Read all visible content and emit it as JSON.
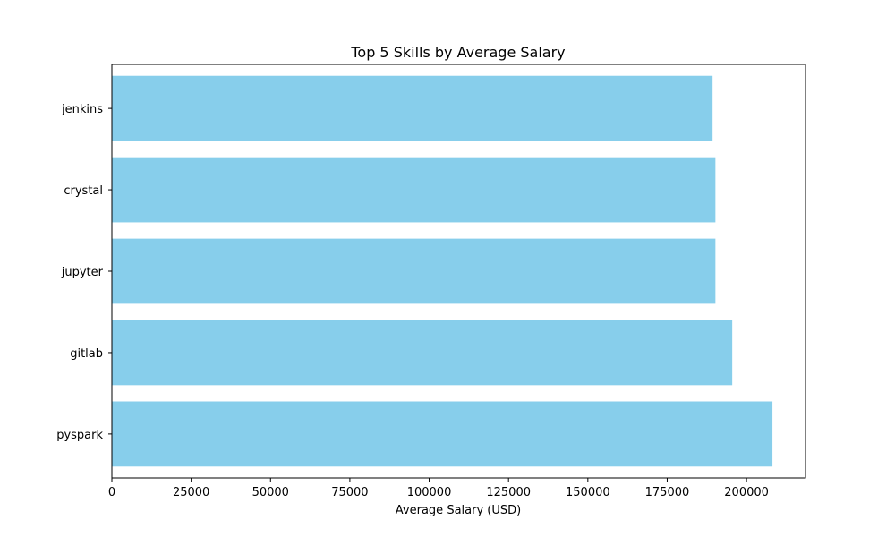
{
  "chart_data": {
    "type": "bar",
    "orientation": "horizontal",
    "title": "Top 5 Skills by Average Salary",
    "xlabel": "Average Salary (USD)",
    "ylabel": "",
    "categories": [
      "pyspark",
      "gitlab",
      "jupyter",
      "crystal",
      "jenkins"
    ],
    "values": [
      208172,
      195500,
      190200,
      190200,
      189300
    ],
    "xlim": [
      0,
      218586
    ],
    "xticks": [
      0,
      25000,
      50000,
      75000,
      100000,
      125000,
      150000,
      175000,
      200000
    ],
    "xtick_labels": [
      "0",
      "25000",
      "50000",
      "75000",
      "100000",
      "125000",
      "150000",
      "175000",
      "200000"
    ],
    "bar_color": "#87ceeb",
    "grid": false,
    "legend": false
  }
}
